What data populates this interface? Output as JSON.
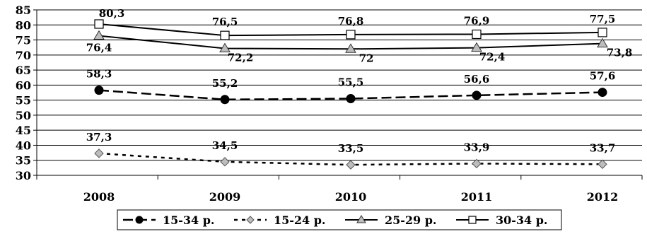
{
  "chart_data": {
    "type": "line",
    "title": "",
    "xlabel": "",
    "ylabel": "",
    "categories": [
      "2008",
      "2009",
      "2010",
      "2011",
      "2012"
    ],
    "ylim": [
      30,
      85
    ],
    "yticks": [
      "30",
      "35",
      "40",
      "45",
      "50",
      "55",
      "60",
      "65",
      "70",
      "75",
      "80",
      "85"
    ],
    "grid": "horizontal",
    "legend_position": "bottom",
    "series": [
      {
        "name": "15-34 р.",
        "values": [
          58.3,
          55.2,
          55.5,
          56.6,
          57.6
        ],
        "labels": [
          "58,3",
          "55,2",
          "55,5",
          "56,6",
          "57,6"
        ],
        "marker": "circle",
        "line_style": "long-dash"
      },
      {
        "name": "15-24 р.",
        "values": [
          37.3,
          34.5,
          33.5,
          33.9,
          33.7
        ],
        "labels": [
          "37,3",
          "34,5",
          "33,5",
          "33,9",
          "33,7"
        ],
        "marker": "diamond",
        "line_style": "dotted"
      },
      {
        "name": "25-29 р.",
        "values": [
          76.4,
          72.2,
          72,
          72.4,
          73.8
        ],
        "labels": [
          "76,4",
          "72,2",
          "72",
          "72,4",
          "73,8"
        ],
        "marker": "triangle",
        "line_style": "solid"
      },
      {
        "name": "30-34 р.",
        "values": [
          80.3,
          76.5,
          76.8,
          76.9,
          77.5
        ],
        "labels": [
          "80,3",
          "76,5",
          "76,8",
          "76,9",
          "77,5"
        ],
        "marker": "square",
        "line_style": "solid"
      }
    ]
  }
}
